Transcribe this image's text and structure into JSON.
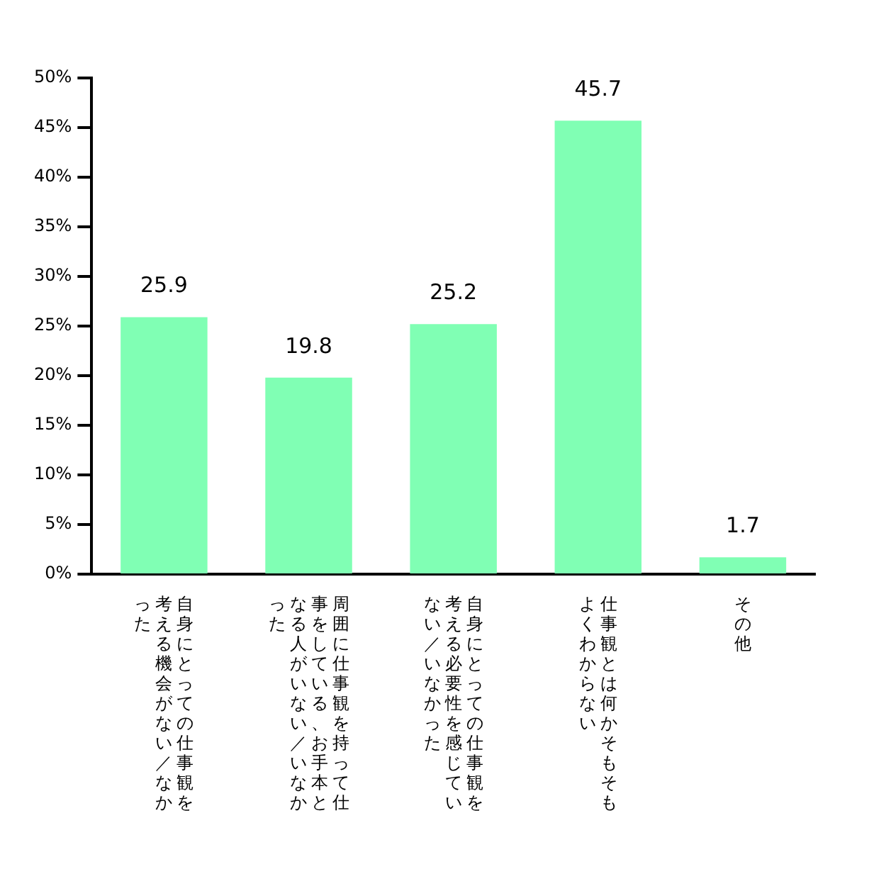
{
  "chart_data": {
    "type": "bar",
    "categories": [
      "自身にとっての仕事観を考える機会がない／なかった",
      "周囲に仕事観を持って仕事をしている、お手本となる人がいない／いなかった",
      "自身にとっての仕事観を考える必要性を感じていない／いなかった",
      "仕事観とは何かそもそもよくわからない",
      "その他"
    ],
    "values": [
      25.9,
      19.8,
      25.2,
      45.7,
      1.7
    ],
    "color": "#80ffb4",
    "ylim": [
      0,
      50
    ],
    "yticks": [
      {
        "value": 0,
        "label": "0%"
      },
      {
        "value": 5,
        "label": "5%"
      },
      {
        "value": 10,
        "label": "10%"
      },
      {
        "value": 15,
        "label": "15%"
      },
      {
        "value": 20,
        "label": "20%"
      },
      {
        "value": 25,
        "label": "25%"
      },
      {
        "value": 30,
        "label": "30%"
      },
      {
        "value": 35,
        "label": "35%"
      },
      {
        "value": 40,
        "label": "40%"
      },
      {
        "value": 45,
        "label": "45%"
      },
      {
        "value": 50,
        "label": "50%"
      }
    ],
    "data_labels": true,
    "grid": false,
    "legend": false
  }
}
